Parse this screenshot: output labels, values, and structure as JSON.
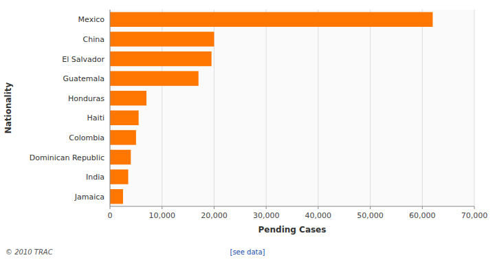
{
  "chart_data": {
    "type": "bar",
    "orientation": "horizontal",
    "categories": [
      "Mexico",
      "China",
      "El Salvador",
      "Guatemala",
      "Honduras",
      "Haiti",
      "Colombia",
      "Dominican Republic",
      "India",
      "Jamaica"
    ],
    "values": [
      62000,
      20000,
      19500,
      17000,
      7000,
      5500,
      5000,
      4000,
      3500,
      2500
    ],
    "color": "#FF7700",
    "xlabel": "Pending Cases",
    "ylabel": "Nationality",
    "xlim": [
      0,
      70000
    ],
    "xticks": [
      0,
      {
        "value": 10000,
        "label": "10,000"
      },
      {
        "value": 20000,
        "label": "20,000"
      },
      {
        "value": 30000,
        "label": "30,000"
      },
      {
        "value": 40000,
        "label": "40,000"
      },
      {
        "value": 50000,
        "label": "50,000"
      },
      {
        "value": 60000,
        "label": "60,000"
      },
      {
        "value": 70000,
        "label": "70,000"
      }
    ],
    "grid": true,
    "annotations": [
      "© 2010 TRAC",
      "[see data]"
    ]
  }
}
